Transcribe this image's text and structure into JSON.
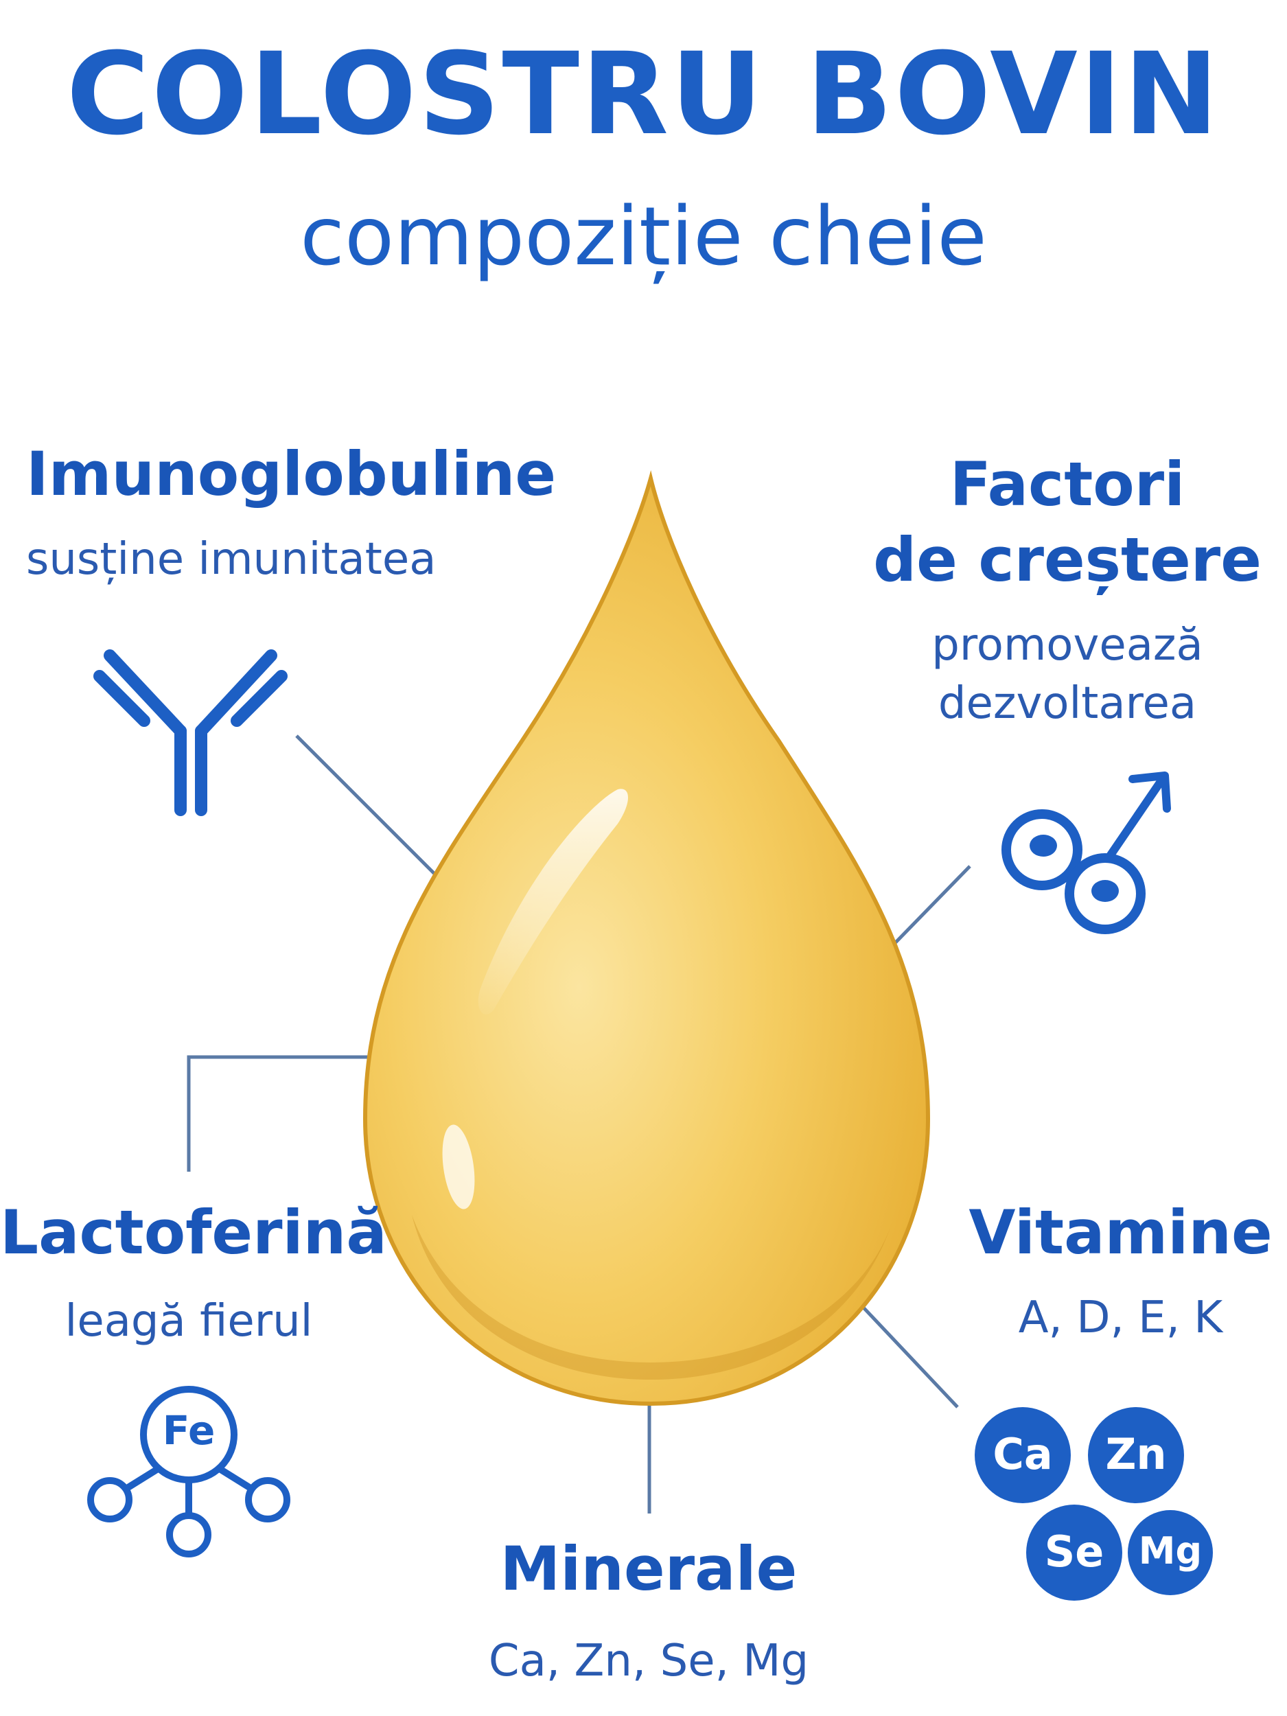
{
  "title": "COLOSTRU BOVIN",
  "subtitle": "compoziție cheie",
  "components": {
    "immunoglobulins": {
      "name": "Imunoglobuline",
      "desc": "susține imunitatea",
      "icon": "antibody-icon"
    },
    "growth_factors": {
      "name_line1": "Factori",
      "name_line2": "de creștere",
      "desc_line1": "promovează",
      "desc_line2": "dezvoltarea",
      "icon": "cells-growth-icon"
    },
    "lactoferrin": {
      "name": "Lactoferină",
      "desc": "leagă fierul",
      "icon": "iron-molecule-icon",
      "icon_label": "Fe"
    },
    "vitamins": {
      "name": "Vitamine",
      "desc": "A, D, E, K"
    },
    "minerals": {
      "name": "Minerale",
      "desc": "Ca, Zn, Se, Mg",
      "icon": "mineral-elements-icon",
      "elements": [
        "Ca",
        "Zn",
        "Se",
        "Mg"
      ]
    }
  },
  "colors": {
    "primary": "#1d5fc4",
    "drop_light": "#f6d77a",
    "drop_dark": "#e0a829",
    "connector": "#5a7aa6"
  }
}
